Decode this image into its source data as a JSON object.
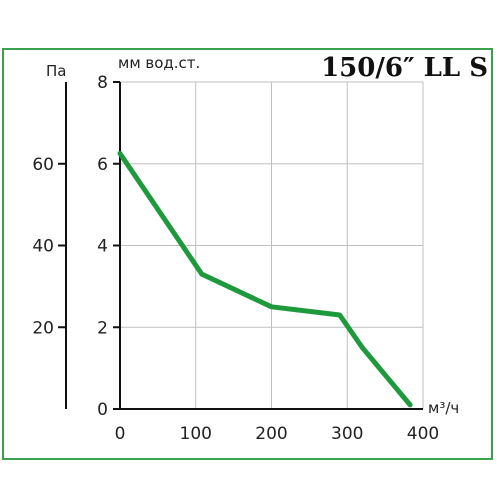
{
  "chart_data": {
    "type": "line",
    "title": "150/6″ LL S",
    "xlabel": "м³/ч",
    "ylabel": "мм вод.ст.",
    "secondary_ylabel": "Па",
    "x_ticks": [
      "0",
      "100",
      "200",
      "300",
      "400"
    ],
    "y_ticks": [
      "0",
      "2",
      "4",
      "6",
      "8"
    ],
    "secondary_y_ticks": [
      "20",
      "40",
      "60"
    ],
    "xlim": [
      0,
      400
    ],
    "ylim": [
      0,
      8
    ],
    "secondary_ylim": [
      0,
      80
    ],
    "grid": true,
    "series": [
      {
        "color": "#1e9a3c",
        "points": [
          [
            0,
            6.25
          ],
          [
            108,
            3.3
          ],
          [
            200,
            2.5
          ],
          [
            290,
            2.3
          ],
          [
            320,
            1.5
          ],
          [
            383,
            0.1
          ]
        ]
      }
    ]
  },
  "colors": {
    "frame": "#3aa24a",
    "curve": "#1e9a3c",
    "grid": "#bfbfbf"
  }
}
